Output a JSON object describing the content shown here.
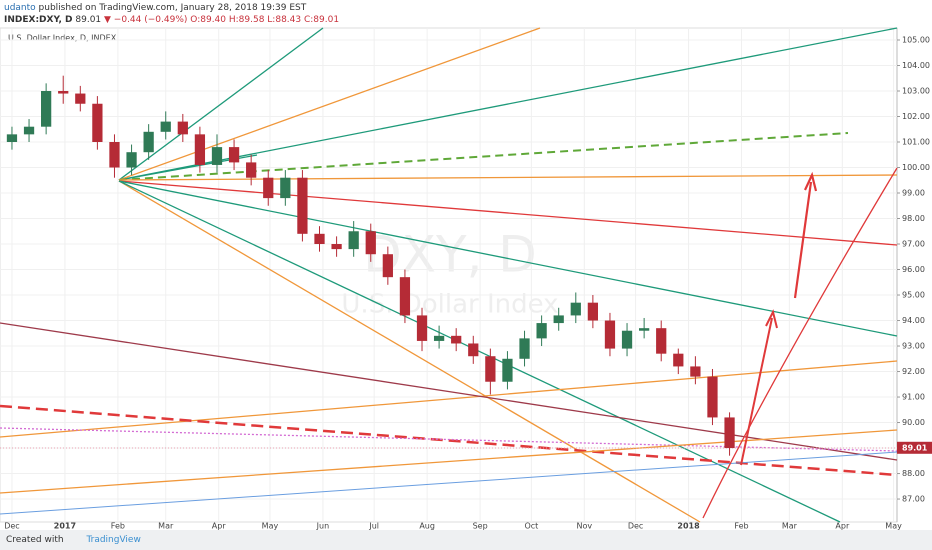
{
  "header": {
    "author": "udanto",
    "published": "published on TradingView.com, January 28, 2018 19:39 EST",
    "symbol": "INDEX:DXY, D",
    "last": "89.01",
    "change": "▼ −0.44 (−0.49%)",
    "ohlc": "O:89.40 H:89.58 L:88.43 C:89.01"
  },
  "footer": {
    "created": "Created with",
    "brand": "TradingView"
  },
  "chart_data": {
    "type": "candlestick",
    "title": "U.S. Dollar Index, D, INDEX",
    "watermark": [
      "DXY, D",
      "U.S. Dollar Index"
    ],
    "up_color": "#2f7a56",
    "down_color": "#b52b36",
    "x": [
      0,
      10,
      20,
      30,
      40,
      50,
      60,
      70,
      80,
      90,
      100,
      110,
      120,
      130,
      140,
      150,
      160,
      170,
      180,
      190,
      200,
      210,
      220,
      230,
      240,
      250,
      260,
      270,
      280,
      290,
      300,
      310,
      320,
      330,
      340,
      350,
      360,
      370,
      380,
      390,
      400,
      410,
      420
    ],
    "open": [
      101.0,
      101.3,
      101.6,
      103.0,
      102.9,
      102.5,
      101.0,
      100.0,
      100.6,
      101.4,
      101.8,
      101.3,
      100.1,
      100.8,
      100.2,
      99.6,
      98.8,
      99.6,
      97.4,
      97.0,
      96.8,
      97.5,
      96.6,
      95.7,
      94.2,
      93.2,
      93.4,
      93.1,
      92.6,
      91.6,
      92.5,
      93.3,
      93.9,
      94.2,
      94.7,
      94.0,
      92.9,
      93.6,
      93.7,
      92.7,
      92.2,
      91.8,
      90.2
    ],
    "high": [
      101.6,
      101.9,
      103.3,
      103.6,
      103.2,
      102.8,
      101.3,
      100.9,
      101.7,
      102.2,
      102.1,
      101.6,
      101.3,
      101.1,
      100.5,
      99.9,
      99.9,
      99.9,
      97.7,
      97.3,
      97.9,
      97.8,
      96.9,
      96.0,
      94.5,
      93.8,
      93.7,
      93.4,
      92.9,
      92.8,
      93.6,
      94.2,
      94.5,
      95.1,
      95.0,
      94.3,
      93.9,
      94.1,
      94.0,
      92.9,
      92.6,
      92.1,
      90.4
    ],
    "low": [
      100.7,
      101.0,
      101.3,
      102.5,
      102.2,
      100.7,
      99.6,
      99.7,
      100.3,
      101.1,
      101.0,
      99.8,
      99.8,
      99.9,
      99.3,
      98.5,
      98.5,
      97.1,
      96.7,
      96.5,
      96.5,
      96.3,
      95.4,
      93.9,
      92.8,
      92.9,
      92.8,
      92.3,
      91.1,
      91.3,
      92.2,
      93.0,
      93.6,
      93.9,
      93.7,
      92.6,
      92.6,
      93.3,
      92.4,
      91.9,
      91.5,
      89.9,
      88.7
    ],
    "close": [
      101.3,
      101.6,
      103.0,
      102.9,
      102.5,
      101.0,
      100.0,
      100.6,
      101.4,
      101.8,
      101.3,
      100.1,
      100.8,
      100.2,
      99.6,
      98.8,
      99.6,
      97.4,
      97.0,
      96.8,
      97.5,
      96.6,
      95.7,
      94.2,
      93.2,
      93.4,
      93.1,
      92.6,
      91.6,
      92.5,
      93.3,
      93.9,
      94.2,
      94.7,
      94.0,
      92.9,
      93.6,
      93.7,
      92.7,
      92.2,
      91.8,
      90.2,
      89.0
    ],
    "xlim": [
      -7,
      518
    ],
    "ylim": [
      86.1,
      105.47
    ],
    "xticks": [
      {
        "value": 0,
        "label": "Dec"
      },
      {
        "value": 31,
        "label": "2017"
      },
      {
        "value": 62,
        "label": "Feb"
      },
      {
        "value": 90,
        "label": "Mar"
      },
      {
        "value": 121,
        "label": "Apr"
      },
      {
        "value": 151,
        "label": "May"
      },
      {
        "value": 182,
        "label": "Jun"
      },
      {
        "value": 212,
        "label": "Jul"
      },
      {
        "value": 243,
        "label": "Aug"
      },
      {
        "value": 274,
        "label": "Sep"
      },
      {
        "value": 304,
        "label": "Oct"
      },
      {
        "value": 335,
        "label": "Nov"
      },
      {
        "value": 365,
        "label": "Dec"
      },
      {
        "value": 396,
        "label": "2018"
      },
      {
        "value": 427,
        "label": "Feb"
      },
      {
        "value": 455,
        "label": "Mar"
      },
      {
        "value": 486,
        "label": "Apr"
      },
      {
        "value": 516,
        "label": "May"
      }
    ],
    "yticks": [
      {
        "value": 87,
        "label": "87.00"
      },
      {
        "value": 88,
        "label": "88.00"
      },
      {
        "value": 89,
        "label": "89.00"
      },
      {
        "value": 90,
        "label": "90.00"
      },
      {
        "value": 91,
        "label": "91.00"
      },
      {
        "value": 92,
        "label": "92.00"
      },
      {
        "value": 93,
        "label": "93.00"
      },
      {
        "value": 94,
        "label": "94.00"
      },
      {
        "value": 95,
        "label": "95.00"
      },
      {
        "value": 96,
        "label": "96.00"
      },
      {
        "value": 97,
        "label": "97.00"
      },
      {
        "value": 98,
        "label": "98.00"
      },
      {
        "value": 99,
        "label": "99.00"
      },
      {
        "value": 100,
        "label": "100.00"
      },
      {
        "value": 101,
        "label": "101.00"
      },
      {
        "value": 102,
        "label": "102.00"
      },
      {
        "value": 103,
        "label": "103.00"
      },
      {
        "value": 104,
        "label": "104.00"
      },
      {
        "value": 105,
        "label": "105.00"
      }
    ],
    "last_price": {
      "value": 89.01,
      "label": "89.01"
    }
  }
}
